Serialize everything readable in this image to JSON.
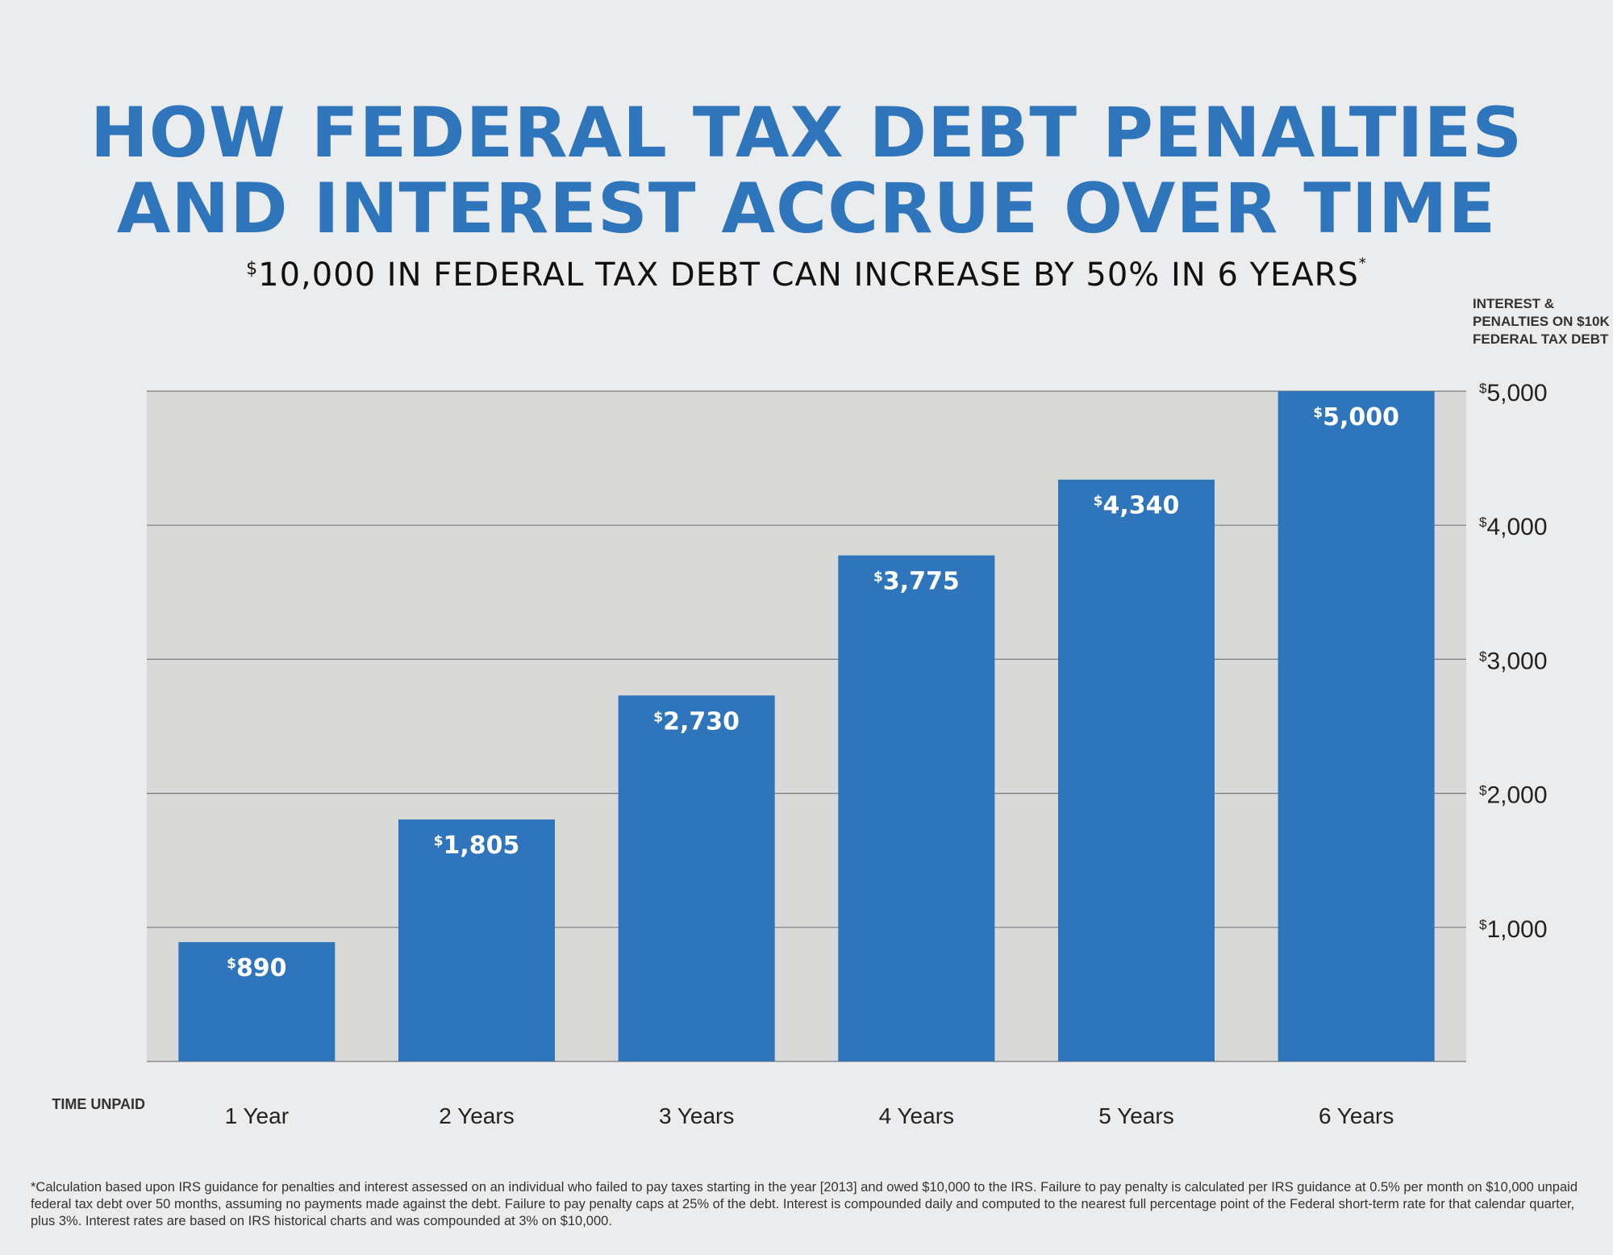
{
  "title_line1": "HOW FEDERAL TAX DEBT PENALTIES",
  "title_line2": "AND INTEREST ACCRUE OVER TIME",
  "subtitle_dollar": "$",
  "subtitle": "10,000 IN FEDERAL TAX DEBT CAN INCREASE BY 50% IN 6 YEARS",
  "subtitle_asterisk": "*",
  "y_axis_title": "INTEREST & PENALTIES ON $10K FEDERAL TAX DEBT",
  "x_axis_title": "TIME UNPAID",
  "footnote": "*Calculation based upon IRS guidance for penalties and interest assessed on an individual who failed to pay taxes starting in the year [2013] and owed $10,000 to the IRS. Failure to pay penalty is calculated per IRS guidance at 0.5% per month on $10,000 unpaid federal tax debt over 50 months, assuming no payments made against the debt. Failure to pay penalty caps at 25% of the debt. Interest is compounded daily and computed to the nearest full percentage point of the Federal short-term rate for that calendar quarter, plus 3%. Interest rates are based on IRS historical charts and was compounded at 3% on $10,000.",
  "colors": {
    "title": "#2e75bb",
    "bar": "#2e75bb",
    "plot_background": "#d9d9d8",
    "page_background": "#ebecee"
  },
  "chart_data": {
    "type": "bar",
    "title": "HOW FEDERAL TAX DEBT PENALTIES AND INTEREST ACCRUE OVER TIME",
    "subtitle": "$10,000 IN FEDERAL TAX DEBT CAN INCREASE BY 50% IN 6 YEARS*",
    "xlabel": "TIME UNPAID",
    "ylabel": "INTEREST & PENALTIES ON $10K FEDERAL TAX DEBT",
    "categories": [
      "1 Year",
      "2 Years",
      "3 Years",
      "4 Years",
      "5 Years",
      "6 Years"
    ],
    "values": [
      890,
      1805,
      2730,
      3775,
      4340,
      5000
    ],
    "data_labels": [
      "890",
      "1,805",
      "2,730",
      "3,775",
      "4,340",
      "5,000"
    ],
    "ylim": [
      0,
      5000
    ],
    "yticks": [
      1000,
      2000,
      3000,
      4000,
      5000
    ],
    "ytick_labels": [
      "1,000",
      "2,000",
      "3,000",
      "4,000",
      "5,000"
    ],
    "currency_prefix": "$",
    "y_axis_side": "right",
    "grid": true,
    "legend": false
  }
}
